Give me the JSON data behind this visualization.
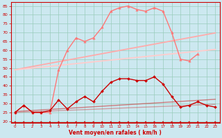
{
  "bg_color": "#cce8f0",
  "grid_color": "#99ccbb",
  "xlabel": "Vent moyen/en rafales ( km/h )",
  "xlabel_color": "#cc0000",
  "ylabel_ticks": [
    20,
    25,
    30,
    35,
    40,
    45,
    50,
    55,
    60,
    65,
    70,
    75,
    80,
    85
  ],
  "xlim": [
    -0.5,
    23.5
  ],
  "ylim": [
    19,
    87
  ],
  "x": [
    0,
    1,
    2,
    3,
    4,
    5,
    6,
    7,
    8,
    9,
    10,
    11,
    12,
    13,
    14,
    15,
    16,
    17,
    18,
    19,
    20,
    21,
    22,
    23
  ],
  "series": [
    {
      "name": "rafales_trend_top",
      "color": "#ffaaaa",
      "alpha": 1.0,
      "linewidth": 1.3,
      "marker": "",
      "markersize": 0,
      "y": [
        49.0,
        50.0,
        50.9,
        51.8,
        52.7,
        53.6,
        54.5,
        55.4,
        56.3,
        57.2,
        58.1,
        59.0,
        59.9,
        60.8,
        61.7,
        62.6,
        63.5,
        64.4,
        65.3,
        66.2,
        67.1,
        68.0,
        68.9,
        69.8
      ]
    },
    {
      "name": "rafales_trend_bot",
      "color": "#ffcccc",
      "alpha": 1.0,
      "linewidth": 1.3,
      "marker": "",
      "markersize": 0,
      "y": [
        49.0,
        49.5,
        50.0,
        50.5,
        51.0,
        51.5,
        52.0,
        52.5,
        53.0,
        53.5,
        54.0,
        54.5,
        55.0,
        55.5,
        56.0,
        56.5,
        57.0,
        57.5,
        58.0,
        58.5,
        59.0,
        59.5,
        60.0,
        60.5
      ]
    },
    {
      "name": "rafales_max",
      "color": "#ff7777",
      "alpha": 1.0,
      "linewidth": 1.0,
      "marker": "^",
      "markersize": 2.5,
      "y": [
        25,
        29,
        25,
        25,
        25,
        49,
        60,
        67,
        65,
        67,
        73,
        82,
        84,
        85,
        83,
        82,
        84,
        82,
        70,
        55,
        54,
        58,
        null,
        null
      ]
    },
    {
      "name": "vent_trend_top",
      "color": "#cc3333",
      "alpha": 0.6,
      "linewidth": 1.0,
      "marker": "",
      "markersize": 0,
      "y": [
        25.5,
        25.8,
        26.1,
        26.4,
        26.7,
        27.0,
        27.3,
        27.6,
        27.9,
        28.2,
        28.5,
        28.8,
        29.1,
        29.4,
        29.7,
        30.0,
        30.3,
        30.6,
        30.9,
        31.2,
        31.5,
        31.8,
        32.1,
        32.4
      ]
    },
    {
      "name": "vent_trend_bot",
      "color": "#cc3333",
      "alpha": 0.4,
      "linewidth": 1.0,
      "marker": "",
      "markersize": 0,
      "y": [
        25.0,
        25.2,
        25.4,
        25.6,
        25.8,
        26.0,
        26.2,
        26.4,
        26.6,
        26.8,
        27.0,
        27.2,
        27.4,
        27.6,
        27.8,
        28.0,
        28.2,
        28.4,
        28.6,
        28.8,
        29.0,
        29.2,
        29.4,
        29.6
      ]
    },
    {
      "name": "vent_moy",
      "color": "#cc0000",
      "alpha": 1.0,
      "linewidth": 1.0,
      "marker": "D",
      "markersize": 2.0,
      "y": [
        25,
        29,
        25,
        25,
        26,
        32,
        27,
        31,
        34,
        31,
        37,
        42,
        44,
        44,
        43,
        43,
        45,
        41,
        34,
        28,
        29,
        31,
        29,
        28
      ]
    }
  ],
  "tick_label_color": "#cc0000",
  "axis_line_color": "#cc0000",
  "wind_arrow_color": "#cc0000",
  "arrow_count": 24
}
